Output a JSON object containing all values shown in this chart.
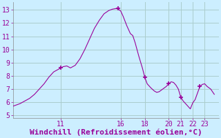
{
  "title": "Windchill (Refroidissement éolien,°C)",
  "bg_color": "#cceeff",
  "grid_color": "#aacccc",
  "line_color": "#990099",
  "marker_color": "#990099",
  "xlim": [
    7.0,
    24.2
  ],
  "ylim": [
    4.8,
    13.6
  ],
  "yticks": [
    5,
    6,
    7,
    8,
    9,
    10,
    11,
    12,
    13
  ],
  "xticks": [
    11,
    16,
    18,
    20,
    21,
    22,
    23
  ],
  "x": [
    7.0,
    7.3,
    7.6,
    8.0,
    8.4,
    8.8,
    9.2,
    9.6,
    10.0,
    10.4,
    10.8,
    11.0,
    11.2,
    11.5,
    11.8,
    12.2,
    12.6,
    13.0,
    13.4,
    13.8,
    14.2,
    14.6,
    15.0,
    15.3,
    15.6,
    15.8,
    16.0,
    16.2,
    16.5,
    16.8,
    17.0,
    17.2,
    17.5,
    17.8,
    18.0,
    18.2,
    18.5,
    18.8,
    19.0,
    19.2,
    19.5,
    19.8,
    20.0,
    20.2,
    20.4,
    20.6,
    20.8,
    21.0,
    21.2,
    21.4,
    21.6,
    21.8,
    22.0,
    22.2,
    22.4,
    22.6,
    22.8,
    23.0,
    23.2,
    23.5,
    23.8
  ],
  "y": [
    5.7,
    5.8,
    5.9,
    6.1,
    6.3,
    6.6,
    7.0,
    7.4,
    7.9,
    8.3,
    8.5,
    8.6,
    8.7,
    8.75,
    8.6,
    8.8,
    9.3,
    10.0,
    10.8,
    11.6,
    12.2,
    12.7,
    12.95,
    13.05,
    13.1,
    13.05,
    12.9,
    12.5,
    11.8,
    11.2,
    11.05,
    10.5,
    9.5,
    8.6,
    7.9,
    7.4,
    7.1,
    6.85,
    6.75,
    6.8,
    7.0,
    7.2,
    7.4,
    7.55,
    7.5,
    7.3,
    7.0,
    6.4,
    6.1,
    5.9,
    5.7,
    5.5,
    5.95,
    6.2,
    6.7,
    7.2,
    7.35,
    7.4,
    7.2,
    7.0,
    6.6
  ],
  "marked_points_x": [
    11.0,
    15.8,
    18.0,
    20.0,
    21.0,
    22.6
  ],
  "marked_points_y": [
    8.6,
    13.1,
    7.9,
    7.4,
    6.4,
    7.2
  ],
  "xlabel_fontsize": 8,
  "tick_fontsize": 7
}
